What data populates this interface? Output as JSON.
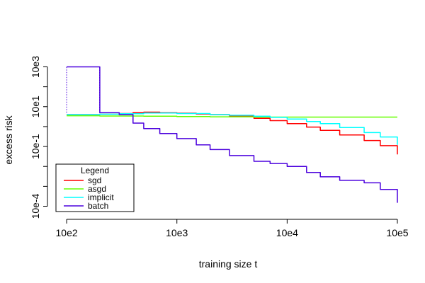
{
  "chart_data": {
    "type": "line",
    "title": "",
    "xlabel": "training size t",
    "ylabel": "excess risk",
    "x_scale": "log10",
    "y_scale": "log10",
    "xlim": [
      80,
      100000
    ],
    "ylim": [
      5e-05,
      2000
    ],
    "x_ticks": [
      {
        "value": 100,
        "label": "10e2"
      },
      {
        "value": 1000,
        "label": "10e3"
      },
      {
        "value": 10000,
        "label": "10e4"
      },
      {
        "value": 100000,
        "label": "10e5"
      }
    ],
    "y_ticks": [
      {
        "value": 0.0001,
        "label": "10e-4",
        "labeled": true
      },
      {
        "value": 0.001,
        "label": "",
        "labeled": false
      },
      {
        "value": 0.01,
        "label": "",
        "labeled": false
      },
      {
        "value": 0.1,
        "label": "10e-1",
        "labeled": true
      },
      {
        "value": 1,
        "label": "",
        "labeled": false
      },
      {
        "value": 10,
        "label": "10e1",
        "labeled": true
      },
      {
        "value": 100,
        "label": "",
        "labeled": false
      },
      {
        "value": 1000,
        "label": "10e3",
        "labeled": true
      }
    ],
    "grid": false,
    "legend": {
      "title": "Legend",
      "position": "bottom-left"
    },
    "series": [
      {
        "name": "sgd",
        "color": "#ff0000",
        "x": [
          100,
          200,
          300,
          400,
          500,
          700,
          1000,
          1500,
          2000,
          3000,
          5000,
          7000,
          10000,
          15000,
          20000,
          30000,
          50000,
          70000,
          100000
        ],
        "y": [
          4,
          4.2,
          4.5,
          5,
          5.3,
          5,
          4.7,
          4.3,
          4,
          3.4,
          2.6,
          2,
          1.4,
          0.95,
          0.65,
          0.38,
          0.2,
          0.11,
          0.04
        ]
      },
      {
        "name": "asgd",
        "color": "#66ff00",
        "x": [
          100,
          200,
          500,
          1000,
          2000,
          5000,
          10000,
          20000,
          50000,
          100000
        ],
        "y": [
          3.5,
          3.4,
          3.3,
          3.2,
          3.1,
          3,
          3,
          3,
          3,
          3
        ]
      },
      {
        "name": "implicit",
        "color": "#00ffff",
        "x": [
          100,
          200,
          300,
          500,
          1000,
          2000,
          3000,
          5000,
          7000,
          10000,
          15000,
          20000,
          30000,
          50000,
          70000,
          100000
        ],
        "y": [
          4,
          4.2,
          4.4,
          4.8,
          4.5,
          4,
          3.7,
          3.3,
          2.9,
          2.4,
          1.8,
          1.4,
          0.9,
          0.5,
          0.3,
          0.12
        ]
      },
      {
        "name": "batch",
        "color": "#4b00dd",
        "x": [
          100,
          140,
          199,
          200,
          300,
          400,
          500,
          700,
          1000,
          1500,
          2000,
          3000,
          5000,
          7000,
          10000,
          15000,
          20000,
          30000,
          50000,
          70000,
          100000
        ],
        "y": [
          1000,
          1000,
          1000,
          5,
          4,
          1.5,
          0.8,
          0.45,
          0.25,
          0.12,
          0.07,
          0.035,
          0.018,
          0.014,
          0.01,
          0.005,
          0.003,
          0.002,
          0.0015,
          0.0007,
          0.00015
        ]
      }
    ]
  }
}
